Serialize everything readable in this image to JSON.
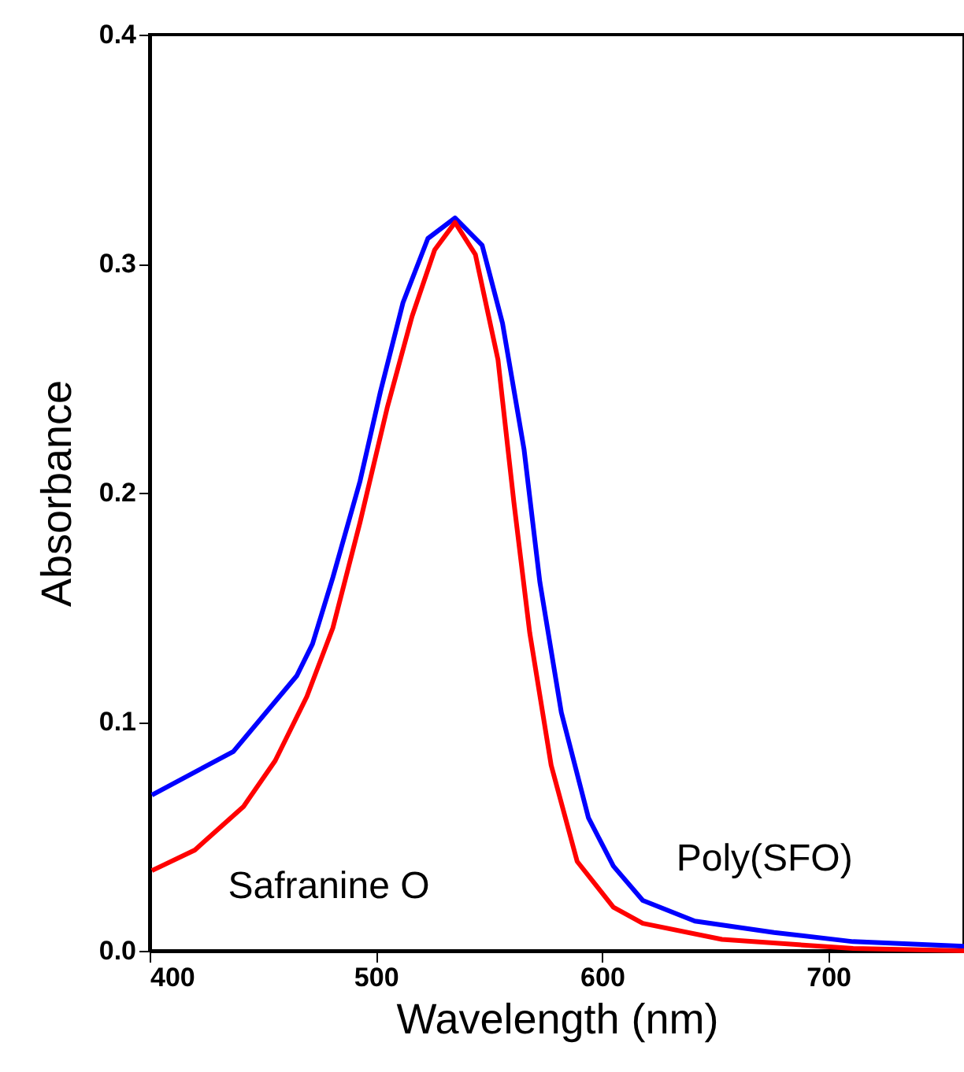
{
  "chart_data": {
    "type": "line",
    "xlabel": "Wavelength (nm)",
    "ylabel": "Absorbance",
    "xlim": [
      400,
      760
    ],
    "xticks": [
      400,
      500,
      600,
      700
    ],
    "ylim": [
      0,
      0.4
    ],
    "yticks": [
      {
        "value": 0,
        "label": "0.0"
      },
      0.1,
      0.2,
      0.3,
      0.4
    ],
    "marker": "none",
    "line_style": "solid",
    "series": [
      {
        "name": "Poly(SFO)",
        "color": "#0000ff",
        "x": [
          401,
          437,
          465,
          472,
          481,
          493,
          502,
          512,
          523,
          535,
          547,
          556,
          565.5,
          572.5,
          582,
          594,
          605,
          618,
          641,
          676,
          711,
          760
        ],
        "values": [
          0.068,
          0.087,
          0.12,
          0.134,
          0.163,
          0.205,
          0.244,
          0.283,
          0.311,
          0.32,
          0.308,
          0.274,
          0.219,
          0.161,
          0.104,
          0.058,
          0.037,
          0.022,
          0.013,
          0.008,
          0.004,
          0.002
        ]
      },
      {
        "name": "Safranine O",
        "color": "#ff0000",
        "x": [
          401,
          420,
          441.5,
          455.5,
          469.5,
          481,
          493,
          505,
          516,
          526,
          535,
          544,
          554,
          561,
          568,
          577.5,
          589,
          605,
          618,
          653,
          711,
          760
        ],
        "values": [
          0.035,
          0.044,
          0.063,
          0.083,
          0.111,
          0.141,
          0.187,
          0.237,
          0.277,
          0.306,
          0.318,
          0.304,
          0.258,
          0.196,
          0.139,
          0.081,
          0.039,
          0.019,
          0.012,
          0.005,
          0.001,
          0.0
        ]
      }
    ]
  }
}
